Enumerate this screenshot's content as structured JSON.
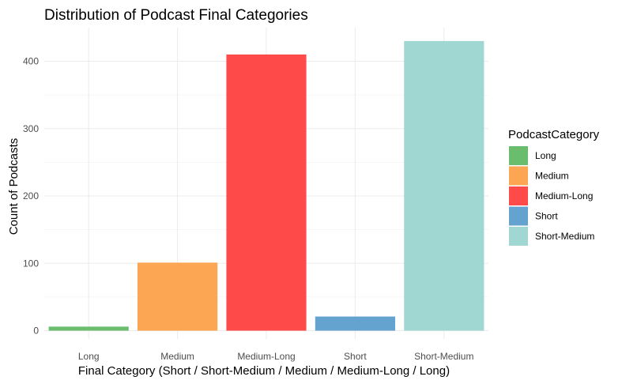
{
  "chart_data": {
    "type": "bar",
    "title": "Distribution of Podcast Final Categories",
    "xlabel": "Final Category (Short / Short-Medium / Medium / Medium-Long / Long)",
    "ylabel": "Count of Podcasts",
    "categories": [
      "Long",
      "Medium",
      "Medium-Long",
      "Short",
      "Short-Medium"
    ],
    "values": [
      6,
      101,
      410,
      21,
      430
    ],
    "colors": [
      "#6bbd6e",
      "#fca552",
      "#ff4a4a",
      "#64a2cf",
      "#a0d7d2"
    ],
    "ylim": [
      0,
      452
    ],
    "yticks": [
      0,
      100,
      200,
      300,
      400
    ],
    "grid": true,
    "legend": {
      "title": "PodcastCategory",
      "placement": "right",
      "entries": [
        "Long",
        "Medium",
        "Medium-Long",
        "Short",
        "Short-Medium"
      ]
    }
  }
}
